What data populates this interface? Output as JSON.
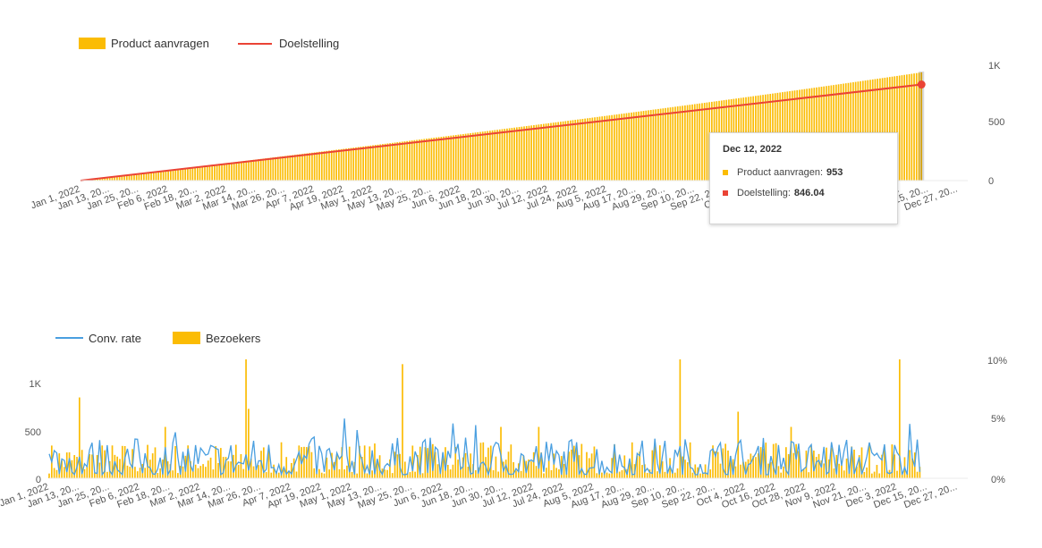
{
  "colors": {
    "bars": "#fbbc04",
    "target": "#ea4335",
    "rate": "#4a9fe0",
    "grid": "#ebebeb",
    "tooltip_border": "#d6d6d6"
  },
  "date_labels": [
    "Jan 1, 2022",
    "Jan 13, 20...",
    "Jan 25, 20...",
    "Feb 6, 2022",
    "Feb 18, 20...",
    "Mar 2, 2022",
    "Mar 14, 20...",
    "Mar 26, 20...",
    "Apr 7, 2022",
    "Apr 19, 2022",
    "May 1, 2022",
    "May 13, 20...",
    "May 25, 20...",
    "Jun 6, 2022",
    "Jun 18, 20...",
    "Jun 30, 20...",
    "Jul 12, 2022",
    "Jul 24, 2022",
    "Aug 5, 2022",
    "Aug 17, 20...",
    "Aug 29, 20...",
    "Sep 10, 20...",
    "Sep 22, 20...",
    "Oct 4, 2022",
    "Oct 16, 2022",
    "Oct 28, 2022",
    "Nov 9, 2022",
    "Nov 21, 20...",
    "Dec 3, 2022",
    "Dec 15, 20...",
    "Dec 27, 20..."
  ],
  "chart_data": [
    {
      "type": "bar",
      "x_start": "2022-01-01",
      "x_end": "2022-12-31",
      "x_last_data": "2022-12-12",
      "series": [
        {
          "name": "Product aanvragen",
          "type": "bar",
          "start_value": 0,
          "end_value": 953,
          "curve": "cumulative, near-linear growth"
        },
        {
          "name": "Doelstelling",
          "type": "line",
          "start_value": 0,
          "end_value": 846.04
        }
      ],
      "y_ticks": [
        "0",
        "500",
        "1K"
      ],
      "ylim": [
        0,
        1000
      ],
      "legend": "top-left",
      "tooltip": {
        "date": "Dec 12, 2022",
        "rows": [
          {
            "label": "Product aanvragen:",
            "value": "953"
          },
          {
            "label": "Doelstelling:",
            "value": "846.04"
          }
        ]
      }
    },
    {
      "type": "bar",
      "x_start": "2022-01-01",
      "x_end": "2022-12-31",
      "x_last_data": "2022-12-12",
      "series": [
        {
          "name": "Bezoekers",
          "type": "bar",
          "axis": "left",
          "typical_range": [
            50,
            380
          ],
          "peaks": [
            {
              "date": "2022-01-13",
              "value": 850
            },
            {
              "date": "2022-02-16",
              "value": 540
            },
            {
              "date": "2022-03-20",
              "value": 1250
            },
            {
              "date": "2022-03-21",
              "value": 730
            },
            {
              "date": "2022-05-21",
              "value": 1200
            },
            {
              "date": "2022-06-29",
              "value": 540
            },
            {
              "date": "2022-07-14",
              "value": 540
            },
            {
              "date": "2022-09-08",
              "value": 1250
            },
            {
              "date": "2022-10-01",
              "value": 700
            },
            {
              "date": "2022-10-22",
              "value": 540
            },
            {
              "date": "2022-12-04",
              "value": 1250
            }
          ]
        },
        {
          "name": "Conv. rate",
          "type": "line",
          "axis": "right",
          "typical_range": [
            0.3,
            3.5
          ],
          "max": 5.3
        }
      ],
      "y_ticks_left": [
        "0",
        "500",
        "1K"
      ],
      "ylim_left": [
        0,
        1250
      ],
      "y_ticks_right": [
        "0%",
        "5%",
        "10%"
      ],
      "ylim_right": [
        0,
        10
      ],
      "legend": "top-left"
    }
  ]
}
